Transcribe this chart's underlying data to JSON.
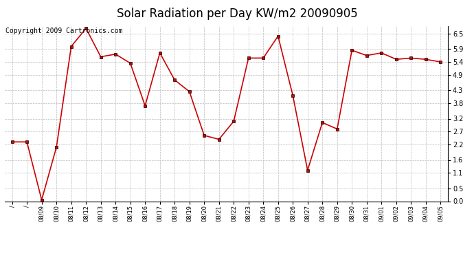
{
  "title": "Solar Radiation per Day KW/m2 20090905",
  "copyright_text": "Copyright 2009 Cartronics.com",
  "x_tick_labels": [
    "/",
    "/",
    "08/09",
    "08/10",
    "08/11",
    "08/12",
    "08/13",
    "08/14",
    "08/15",
    "08/16",
    "08/17",
    "08/18",
    "08/19",
    "08/20",
    "08/21",
    "08/22",
    "08/23",
    "08/24",
    "08/25",
    "08/26",
    "08/27",
    "08/28",
    "08/29",
    "08/30",
    "08/31",
    "09/01",
    "09/02",
    "09/03",
    "09/04",
    "09/05"
  ],
  "values": [
    2.3,
    2.3,
    0.05,
    2.1,
    6.0,
    6.7,
    5.6,
    5.7,
    5.35,
    3.7,
    5.75,
    4.7,
    4.25,
    2.55,
    2.4,
    3.1,
    5.55,
    5.55,
    6.4,
    4.1,
    1.2,
    3.05,
    2.8,
    5.85,
    5.65,
    5.75,
    5.5,
    5.55,
    5.5,
    5.4
  ],
  "line_color": "#cc0000",
  "marker": "s",
  "marker_size": 3,
  "ylim": [
    0.0,
    6.8
  ],
  "yticks": [
    0.0,
    0.5,
    1.1,
    1.6,
    2.2,
    2.7,
    3.2,
    3.8,
    4.3,
    4.9,
    5.4,
    5.9,
    6.5
  ],
  "grid_color": "#bbbbbb",
  "bg_color": "#ffffff",
  "title_fontsize": 12,
  "copyright_fontsize": 7
}
